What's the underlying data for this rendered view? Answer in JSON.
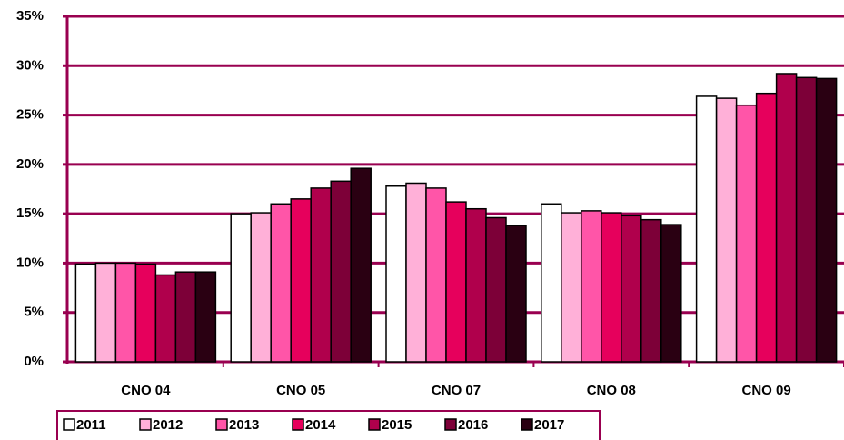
{
  "chart_data": {
    "type": "bar",
    "categories": [
      "CNO 04",
      "CNO 05",
      "CNO 07",
      "CNO 08",
      "CNO 09"
    ],
    "series": [
      {
        "name": "2011",
        "color": "#ffffff",
        "values": [
          9.9,
          15.0,
          17.8,
          16.0,
          26.9
        ]
      },
      {
        "name": "2012",
        "color": "#ffb0d8",
        "values": [
          10.0,
          15.1,
          18.1,
          15.1,
          26.7
        ]
      },
      {
        "name": "2013",
        "color": "#ff55a8",
        "values": [
          10.0,
          16.0,
          17.6,
          15.3,
          26.0
        ]
      },
      {
        "name": "2014",
        "color": "#e6005c",
        "values": [
          9.9,
          16.5,
          16.2,
          15.1,
          27.2
        ]
      },
      {
        "name": "2015",
        "color": "#b0004c",
        "values": [
          8.8,
          17.6,
          15.5,
          14.8,
          29.2
        ]
      },
      {
        "name": "2016",
        "color": "#7d0038",
        "values": [
          9.1,
          18.3,
          14.6,
          14.4,
          28.8
        ]
      },
      {
        "name": "2017",
        "color": "#2a0012",
        "values": [
          9.1,
          19.6,
          13.8,
          13.9,
          28.7
        ]
      }
    ],
    "ylim": [
      0,
      35
    ],
    "yticks": [
      {
        "value": 0,
        "label": "0%"
      },
      {
        "value": 5,
        "label": "5%"
      },
      {
        "value": 10,
        "label": "10%"
      },
      {
        "value": 15,
        "label": "15%"
      },
      {
        "value": 20,
        "label": "20%"
      },
      {
        "value": 25,
        "label": "25%"
      },
      {
        "value": 30,
        "label": "30%"
      },
      {
        "value": 35,
        "label": "35%"
      }
    ],
    "grid": true,
    "legend": "bottom"
  }
}
